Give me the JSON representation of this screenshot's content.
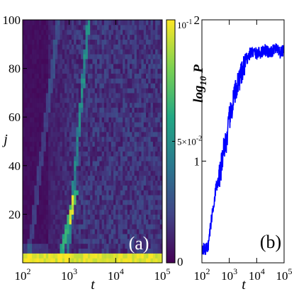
{
  "chart_data": [
    {
      "panel": "(a)",
      "type": "heatmap",
      "xlabel": "t",
      "ylabel": "j",
      "xscale": "log",
      "xlim": [
        100,
        100000
      ],
      "ylim": [
        0,
        100
      ],
      "x_ticks": [
        100,
        1000,
        10000,
        100000
      ],
      "x_tick_labels": [
        {
          "base": "10",
          "exp": "2"
        },
        {
          "base": "10",
          "exp": "3"
        },
        {
          "base": "10",
          "exp": "4"
        },
        {
          "base": "10",
          "exp": "5"
        }
      ],
      "y_ticks": [
        20,
        40,
        60,
        80,
        100
      ],
      "y_tick_labels": [
        "20",
        "40",
        "60",
        "80",
        "100"
      ],
      "colorbar": {
        "range": [
          0,
          0.1
        ],
        "colormap": "viridis",
        "ticks": [
          0,
          0.05,
          0.1
        ],
        "tick_labels": [
          {
            "text": "0"
          },
          {
            "text": "5×10",
            "sup": "-2"
          },
          {
            "text": "10",
            "sup": "-1"
          }
        ]
      },
      "features": {
        "bright_low_band_j": [
          1,
          3
        ],
        "dark_region_until_t": 350,
        "wave1_start_t": 130,
        "wave1_peak_t": 600,
        "wave2_start_t": 600,
        "wave2_peak_t": 1400,
        "wave2_peak_j": 30,
        "wave3_start_t": 900,
        "wave3_peak_t": 2600,
        "wave3_peak_j": 100
      }
    },
    {
      "panel": "(b)",
      "type": "line",
      "xlabel": "t",
      "ylabel": "log10 P",
      "ylabel_parts": {
        "main": "log",
        "sub": "10",
        "tail": " P"
      },
      "xscale": "log",
      "xlim": [
        100,
        100000
      ],
      "ylim": [
        0.28,
        2.0
      ],
      "x_ticks": [
        100,
        1000,
        10000,
        100000
      ],
      "x_tick_labels": [
        {
          "base": "10",
          "exp": "2"
        },
        {
          "base": "10",
          "exp": "3"
        },
        {
          "base": "10",
          "exp": "4"
        },
        {
          "base": "10",
          "exp": "5"
        }
      ],
      "y_ticks": [
        1,
        2
      ],
      "y_tick_labels": [
        "1",
        "2"
      ],
      "series": [
        {
          "color": "#0000ff",
          "x": [
            100,
            130,
            170,
            200,
            260,
            320,
            400,
            500,
            600,
            700,
            800,
            900,
            1000,
            1200,
            1400,
            1600,
            1800,
            2000,
            2300,
            2600,
            3000,
            3500,
            4000,
            5000,
            6000,
            8000,
            10000,
            15000,
            20000,
            30000,
            50000,
            70000,
            100000
          ],
          "y": [
            0.39,
            0.37,
            0.4,
            0.52,
            0.68,
            0.8,
            0.86,
            0.95,
            1.08,
            1.12,
            1.15,
            1.22,
            1.3,
            1.35,
            1.43,
            1.48,
            1.5,
            1.56,
            1.58,
            1.6,
            1.62,
            1.68,
            1.72,
            1.74,
            1.77,
            1.77,
            1.76,
            1.77,
            1.79,
            1.76,
            1.8,
            1.76,
            1.79
          ]
        }
      ]
    }
  ],
  "annotations": {
    "panel_a_label": "(a)",
    "panel_b_label": "(b)"
  }
}
